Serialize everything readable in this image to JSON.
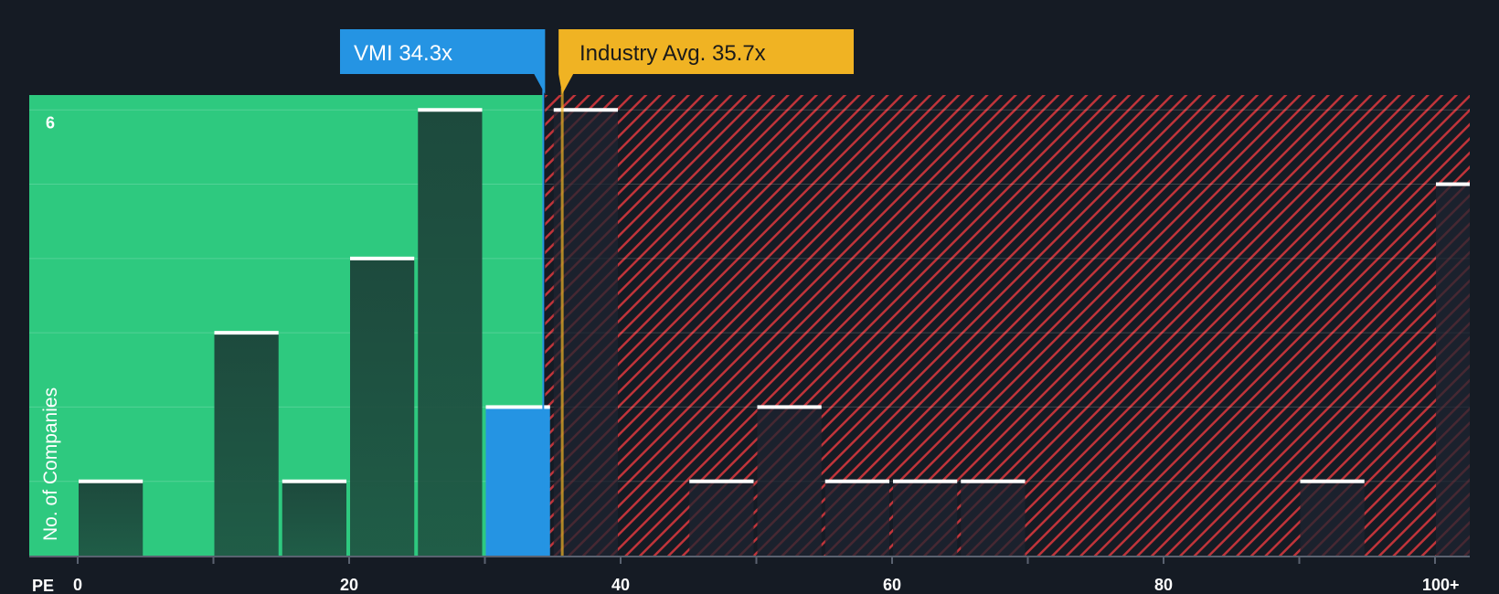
{
  "chart_data": {
    "type": "bar",
    "xlabel": "PE",
    "ylabel": "No. of Companies",
    "xlim": [
      0,
      102
    ],
    "ylim": [
      0,
      6.2
    ],
    "x_ticks": [
      0,
      20,
      40,
      60,
      80,
      100
    ],
    "x_tick_labels": [
      "0",
      "20",
      "40",
      "60",
      "80",
      "100+"
    ],
    "y_tick_labels": [
      {
        "value": 6,
        "label": "6"
      }
    ],
    "bin_width": 5,
    "bins": [
      {
        "start": 0,
        "count": 1
      },
      {
        "start": 5,
        "count": 0
      },
      {
        "start": 10,
        "count": 3
      },
      {
        "start": 15,
        "count": 1
      },
      {
        "start": 20,
        "count": 4
      },
      {
        "start": 25,
        "count": 6
      },
      {
        "start": 30,
        "count": 2,
        "highlight": true
      },
      {
        "start": 35,
        "count": 6
      },
      {
        "start": 40,
        "count": 0
      },
      {
        "start": 45,
        "count": 1
      },
      {
        "start": 50,
        "count": 2
      },
      {
        "start": 55,
        "count": 1
      },
      {
        "start": 60,
        "count": 1
      },
      {
        "start": 65,
        "count": 1
      },
      {
        "start": 70,
        "count": 0
      },
      {
        "start": 75,
        "count": 0
      },
      {
        "start": 80,
        "count": 0
      },
      {
        "start": 85,
        "count": 0
      },
      {
        "start": 90,
        "count": 1
      },
      {
        "start": 95,
        "count": 0
      },
      {
        "start": 100,
        "count": 5
      }
    ],
    "company": {
      "name": "VMI",
      "value": 34.3,
      "label": "VMI 34.3x"
    },
    "industry": {
      "name": "Industry Avg.",
      "value": 35.7,
      "label": "Industry Avg. 35.7x"
    },
    "colors": {
      "background": "#151b24",
      "fair_zone": "#2ec97f",
      "over_zone": "#c0343a",
      "bar": "#1d4a3d",
      "highlight_bar": "#2594e3",
      "company_callout": "#2594e3",
      "industry_callout": "#f0b323"
    }
  }
}
